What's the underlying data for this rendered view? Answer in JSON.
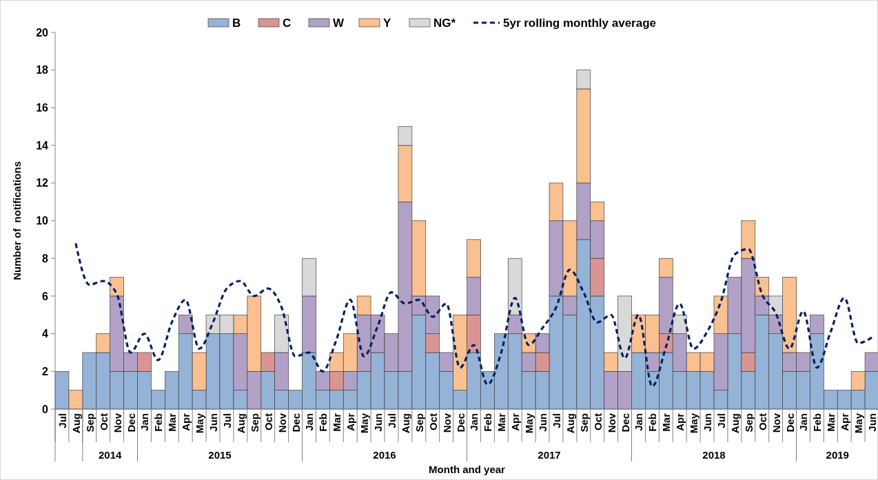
{
  "chart_data": {
    "type": "bar",
    "stacked": true,
    "xlabel": "Month and year",
    "ylabel": "Number of  notifications",
    "legend": "top",
    "line_style": "dashed",
    "categories": [
      "Jul",
      "Aug",
      "Sep",
      "Oct",
      "Nov",
      "Dec",
      "Jan",
      "Feb",
      "Mar",
      "Apr",
      "May",
      "Jun",
      "Jul",
      "Aug",
      "Sep",
      "Oct",
      "Nov",
      "Dec",
      "Jan",
      "Feb",
      "Mar",
      "Apr",
      "May",
      "Jun",
      "Jul",
      "Aug",
      "Sep",
      "Oct",
      "Nov",
      "Dec",
      "Jan",
      "Feb",
      "Mar",
      "Apr",
      "May",
      "Jun",
      "Jul",
      "Aug",
      "Sep",
      "Oct",
      "Nov",
      "Dec",
      "Jan",
      "Feb",
      "Mar",
      "Apr",
      "May",
      "Jun",
      "Jul",
      "Aug",
      "Sep",
      "Oct",
      "Nov",
      "Dec",
      "Jan",
      "Feb",
      "Mar",
      "Apr",
      "May",
      "Jun"
    ],
    "series": [
      {
        "name": "B",
        "color": "#95b3d7",
        "values": [
          2,
          0,
          3,
          3,
          2,
          2,
          2,
          1,
          2,
          4,
          1,
          4,
          4,
          1,
          0,
          2,
          1,
          1,
          3,
          1,
          1,
          1,
          2,
          3,
          2,
          2,
          5,
          3,
          2,
          1,
          3,
          2,
          4,
          4,
          2,
          2,
          6,
          5,
          9,
          6,
          0,
          0,
          3,
          2,
          3,
          2,
          2,
          2,
          1,
          4,
          2,
          5,
          4,
          2,
          2,
          4,
          1,
          1,
          1,
          2
        ]
      },
      {
        "name": "C",
        "color": "#d99594",
        "values": [
          0,
          0,
          0,
          0,
          0,
          0,
          1,
          0,
          0,
          0,
          0,
          0,
          0,
          0,
          0,
          1,
          0,
          0,
          0,
          0,
          1,
          0,
          0,
          0,
          0,
          0,
          0,
          1,
          0,
          0,
          2,
          0,
          0,
          0,
          0,
          1,
          0,
          0,
          0,
          2,
          0,
          0,
          0,
          0,
          1,
          0,
          0,
          0,
          0,
          0,
          1,
          0,
          0,
          0,
          0,
          0,
          0,
          0,
          0,
          0
        ]
      },
      {
        "name": "W",
        "color": "#b2a1c7",
        "values": [
          0,
          0,
          0,
          0,
          4,
          1,
          0,
          0,
          0,
          1,
          0,
          0,
          0,
          3,
          2,
          0,
          2,
          0,
          3,
          1,
          0,
          1,
          3,
          2,
          2,
          9,
          1,
          2,
          1,
          0,
          2,
          0,
          0,
          1,
          1,
          1,
          4,
          1,
          3,
          2,
          2,
          2,
          0,
          1,
          3,
          2,
          0,
          0,
          3,
          3,
          5,
          1,
          1,
          1,
          1,
          1,
          0,
          0,
          0,
          1
        ]
      },
      {
        "name": "Y",
        "color": "#fac090",
        "values": [
          0,
          1,
          0,
          1,
          1,
          0,
          0,
          0,
          0,
          0,
          2,
          0,
          0,
          1,
          4,
          0,
          0,
          0,
          0,
          0,
          1,
          2,
          1,
          0,
          0,
          3,
          4,
          0,
          0,
          4,
          2,
          0,
          0,
          0,
          1,
          0,
          2,
          4,
          5,
          1,
          1,
          0,
          2,
          2,
          1,
          0,
          1,
          1,
          2,
          0,
          2,
          1,
          0,
          4,
          0,
          0,
          0,
          0,
          1,
          0
        ]
      },
      {
        "name": "NG*",
        "color": "#d9d9d9",
        "values": [
          0,
          0,
          0,
          0,
          0,
          0,
          0,
          0,
          0,
          0,
          0,
          1,
          1,
          0,
          0,
          0,
          2,
          0,
          2,
          0,
          0,
          0,
          0,
          0,
          0,
          1,
          0,
          0,
          0,
          0,
          0,
          0,
          0,
          3,
          0,
          0,
          0,
          0,
          1,
          0,
          0,
          4,
          0,
          0,
          0,
          1,
          0,
          0,
          0,
          0,
          0,
          0,
          1,
          0,
          0,
          0,
          0,
          0,
          0,
          0
        ]
      },
      {
        "name": "5yr rolling monthly average",
        "type": "line",
        "color": "#002060",
        "values": [
          null,
          8.8,
          6.6,
          6.8,
          6.1,
          3.0,
          4.0,
          2.6,
          4.6,
          5.8,
          3.2,
          4.6,
          6.4,
          6.8,
          6.0,
          6.4,
          5.4,
          2.8,
          3.0,
          2.0,
          3.7,
          5.8,
          2.8,
          4.4,
          6.2,
          5.6,
          5.8,
          4.9,
          5.6,
          2.2,
          3.4,
          1.3,
          3.0,
          5.9,
          3.4,
          4.3,
          5.4,
          7.4,
          6.2,
          4.6,
          5.0,
          2.7,
          5.0,
          1.2,
          3.3,
          5.6,
          3.2,
          4.1,
          5.7,
          8.2,
          8.5,
          6.1,
          5.1,
          3.2,
          5.2,
          2.2,
          4.1,
          5.9,
          3.5,
          3.8
        ]
      }
    ],
    "ylim": [
      0,
      20
    ],
    "yticks": [
      0,
      2,
      4,
      6,
      8,
      10,
      12,
      14,
      16,
      18,
      20
    ],
    "annotations": [
      "2014",
      "2015",
      "2016",
      "2017",
      "2018",
      "2019"
    ]
  }
}
